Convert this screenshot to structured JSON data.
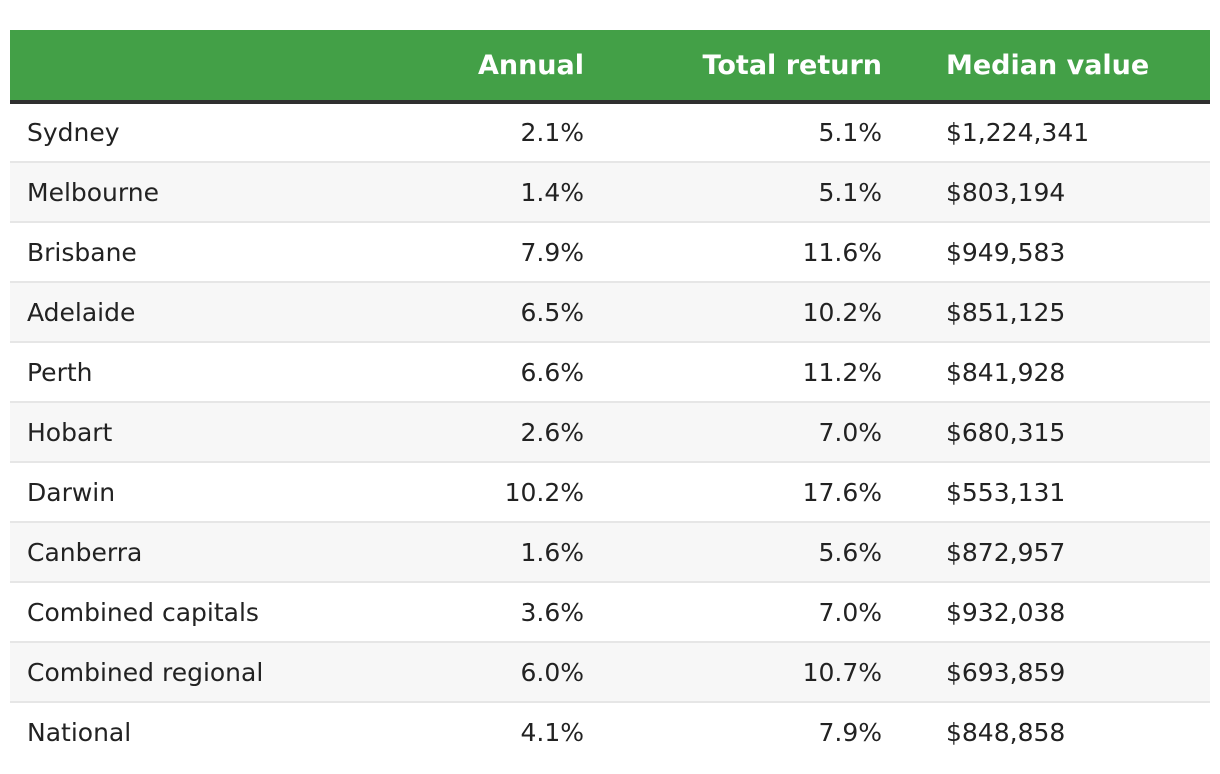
{
  "table": {
    "headers": {
      "city": "",
      "annual": "Annual",
      "total_return": "Total return",
      "median_value": "Median value"
    },
    "rows": [
      {
        "city": "Sydney",
        "annual": "2.1%",
        "total_return": "5.1%",
        "median_value": "$1,224,341"
      },
      {
        "city": "Melbourne",
        "annual": "1.4%",
        "total_return": "5.1%",
        "median_value": "$803,194"
      },
      {
        "city": "Brisbane",
        "annual": "7.9%",
        "total_return": "11.6%",
        "median_value": "$949,583"
      },
      {
        "city": "Adelaide",
        "annual": "6.5%",
        "total_return": "10.2%",
        "median_value": "$851,125"
      },
      {
        "city": "Perth",
        "annual": "6.6%",
        "total_return": "11.2%",
        "median_value": "$841,928"
      },
      {
        "city": "Hobart",
        "annual": "2.6%",
        "total_return": "7.0%",
        "median_value": "$680,315"
      },
      {
        "city": "Darwin",
        "annual": "10.2%",
        "total_return": "17.6%",
        "median_value": "$553,131"
      },
      {
        "city": "Canberra",
        "annual": "1.6%",
        "total_return": "5.6%",
        "median_value": "$872,957"
      },
      {
        "city": "Combined capitals",
        "annual": "3.6%",
        "total_return": "7.0%",
        "median_value": "$932,038"
      },
      {
        "city": "Combined regional",
        "annual": "6.0%",
        "total_return": "10.7%",
        "median_value": "$693,859"
      },
      {
        "city": "National",
        "annual": "4.1%",
        "total_return": "7.9%",
        "median_value": "$848,858"
      }
    ]
  },
  "colors": {
    "header_bg": "#43a047",
    "header_text": "#ffffff",
    "header_border": "#2f2f2f",
    "row_alt_bg": "#f7f7f7"
  }
}
